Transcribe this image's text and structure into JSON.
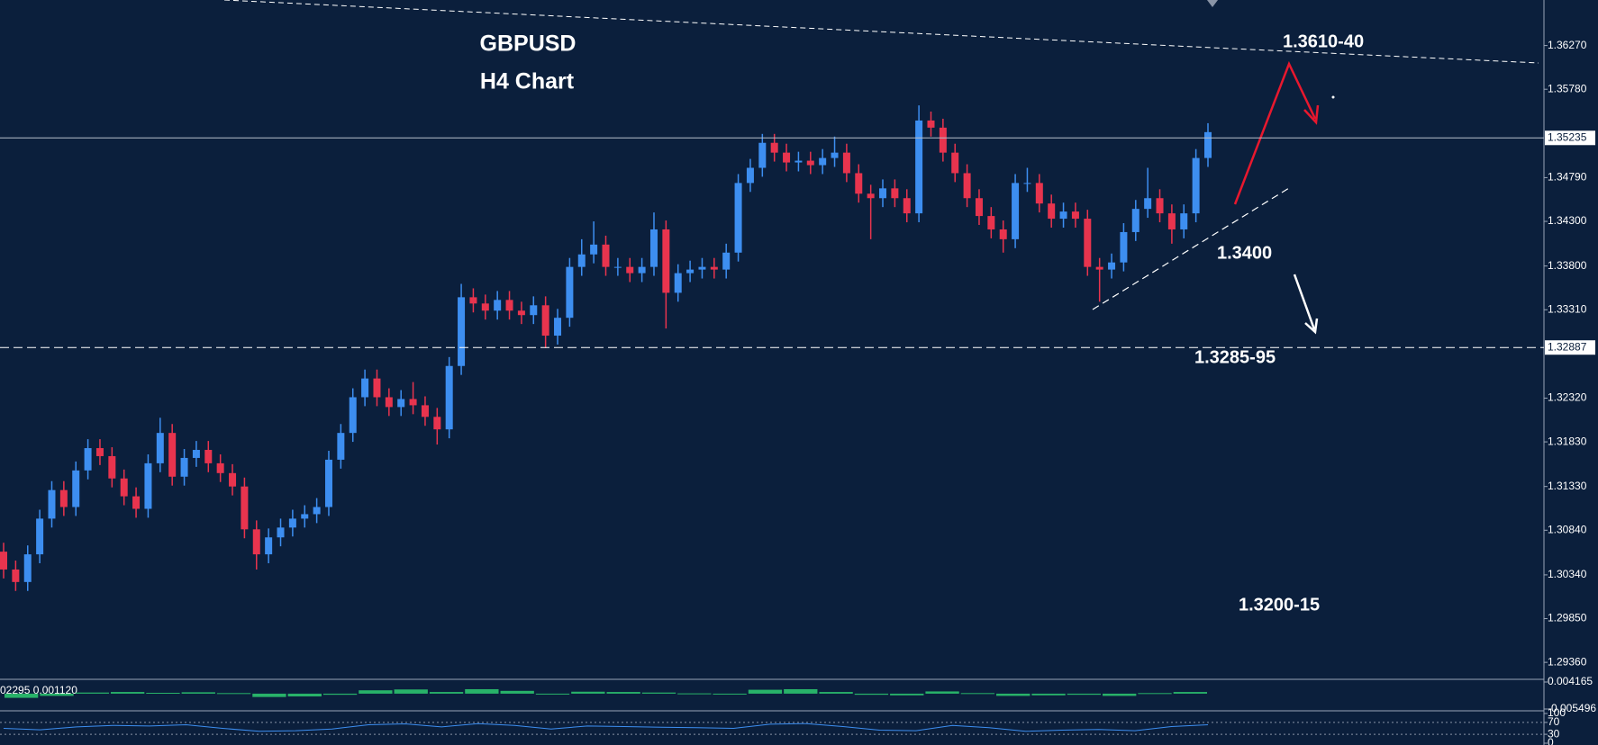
{
  "chart_data": [
    {
      "type": "candlestick",
      "title": "GBPUSD",
      "subtitle": "H4 Chart",
      "ylim": [
        1.2919,
        1.3678
      ],
      "yticks": [
        {
          "value": 1.3627,
          "label": "1.36270"
        },
        {
          "value": 1.3578,
          "label": "1.35780"
        },
        {
          "value": 1.3479,
          "label": "1.34790"
        },
        {
          "value": 1.343,
          "label": "1.34300"
        },
        {
          "value": 1.338,
          "label": "1.33800"
        },
        {
          "value": 1.3331,
          "label": "1.33310"
        },
        {
          "value": 1.3232,
          "label": "1.32320"
        },
        {
          "value": 1.3183,
          "label": "1.31830"
        },
        {
          "value": 1.3133,
          "label": "1.31330"
        },
        {
          "value": 1.3084,
          "label": "1.30840"
        },
        {
          "value": 1.3034,
          "label": "1.30340"
        },
        {
          "value": 1.2985,
          "label": "1.29850"
        },
        {
          "value": 1.2936,
          "label": "1.29360"
        }
      ],
      "price_lines": [
        {
          "value": 1.35235,
          "label": "1.35235",
          "style": "solid"
        },
        {
          "value": 1.32887,
          "label": "1.32887",
          "style": "dashed"
        }
      ],
      "annotations": [
        "1.3610-40",
        "1.3400",
        "1.3285-95",
        "1.3200-15"
      ],
      "up_color": "#3d8ef0",
      "down_color": "#e8344e",
      "candles": [
        [
          1.306,
          1.307,
          1.303,
          1.304
        ],
        [
          1.304,
          1.305,
          1.3016,
          1.3026
        ],
        [
          1.3026,
          1.3067,
          1.3016,
          1.3057
        ],
        [
          1.3057,
          1.3107,
          1.3047,
          1.3097
        ],
        [
          1.3097,
          1.3139,
          1.3087,
          1.3129
        ],
        [
          1.3129,
          1.3139,
          1.31,
          1.311
        ],
        [
          1.311,
          1.3161,
          1.31,
          1.3151
        ],
        [
          1.3151,
          1.3186,
          1.3141,
          1.3176
        ],
        [
          1.3176,
          1.3186,
          1.3157,
          1.3167
        ],
        [
          1.3167,
          1.3177,
          1.3132,
          1.3142
        ],
        [
          1.3142,
          1.3152,
          1.3112,
          1.3122
        ],
        [
          1.3122,
          1.3132,
          1.3098,
          1.3108
        ],
        [
          1.3108,
          1.3169,
          1.3098,
          1.3159
        ],
        [
          1.3159,
          1.321,
          1.3149,
          1.3193
        ],
        [
          1.3193,
          1.3203,
          1.3134,
          1.3144
        ],
        [
          1.3144,
          1.3175,
          1.3134,
          1.3165
        ],
        [
          1.3165,
          1.3184,
          1.3155,
          1.3174
        ],
        [
          1.3174,
          1.3184,
          1.3149,
          1.3159
        ],
        [
          1.3159,
          1.3169,
          1.3138,
          1.3148
        ],
        [
          1.3148,
          1.3158,
          1.3123,
          1.3133
        ],
        [
          1.3133,
          1.3143,
          1.3075,
          1.3085
        ],
        [
          1.3085,
          1.3095,
          1.304,
          1.3057
        ],
        [
          1.3057,
          1.3086,
          1.3047,
          1.3076
        ],
        [
          1.3076,
          1.3097,
          1.3066,
          1.3087
        ],
        [
          1.3087,
          1.3107,
          1.3077,
          1.3097
        ],
        [
          1.3097,
          1.3112,
          1.3087,
          1.3102
        ],
        [
          1.3102,
          1.312,
          1.3092,
          1.311
        ],
        [
          1.311,
          1.3173,
          1.31,
          1.3163
        ],
        [
          1.3163,
          1.3203,
          1.3153,
          1.3193
        ],
        [
          1.3193,
          1.3243,
          1.3183,
          1.3233
        ],
        [
          1.3233,
          1.3264,
          1.3223,
          1.3254
        ],
        [
          1.3254,
          1.3264,
          1.3223,
          1.3233
        ],
        [
          1.3233,
          1.3243,
          1.3212,
          1.3222
        ],
        [
          1.3222,
          1.3241,
          1.3212,
          1.3231
        ],
        [
          1.3231,
          1.325,
          1.3214,
          1.3224
        ],
        [
          1.3224,
          1.3234,
          1.3201,
          1.3211
        ],
        [
          1.3211,
          1.3221,
          1.318,
          1.3197
        ],
        [
          1.3197,
          1.3278,
          1.3187,
          1.3268
        ],
        [
          1.3268,
          1.336,
          1.3258,
          1.3345
        ],
        [
          1.3345,
          1.3355,
          1.3328,
          1.3338
        ],
        [
          1.3338,
          1.3348,
          1.332,
          1.333
        ],
        [
          1.333,
          1.3352,
          1.332,
          1.3342
        ],
        [
          1.3342,
          1.3352,
          1.332,
          1.333
        ],
        [
          1.333,
          1.334,
          1.3315,
          1.3325
        ],
        [
          1.3325,
          1.3346,
          1.3315,
          1.3336
        ],
        [
          1.3336,
          1.3346,
          1.3288,
          1.3302
        ],
        [
          1.3302,
          1.3332,
          1.3292,
          1.3322
        ],
        [
          1.3322,
          1.3389,
          1.3312,
          1.3379
        ],
        [
          1.3379,
          1.341,
          1.3369,
          1.3393
        ],
        [
          1.3393,
          1.343,
          1.3383,
          1.3404
        ],
        [
          1.3404,
          1.3414,
          1.3369,
          1.3379
        ],
        [
          1.3379,
          1.3389,
          1.3369,
          1.3379
        ],
        [
          1.3379,
          1.3389,
          1.3362,
          1.3372
        ],
        [
          1.3372,
          1.3389,
          1.3362,
          1.3379
        ],
        [
          1.3379,
          1.344,
          1.3369,
          1.3421
        ],
        [
          1.3421,
          1.3431,
          1.331,
          1.335
        ],
        [
          1.335,
          1.3382,
          1.334,
          1.3372
        ],
        [
          1.3372,
          1.3386,
          1.3362,
          1.3376
        ],
        [
          1.3376,
          1.3389,
          1.3366,
          1.3379
        ],
        [
          1.3379,
          1.3389,
          1.3366,
          1.3376
        ],
        [
          1.3376,
          1.3405,
          1.3366,
          1.3395
        ],
        [
          1.3395,
          1.3483,
          1.3385,
          1.3473
        ],
        [
          1.3473,
          1.35,
          1.3463,
          1.349
        ],
        [
          1.349,
          1.3528,
          1.348,
          1.3518
        ],
        [
          1.3518,
          1.3528,
          1.3497,
          1.3507
        ],
        [
          1.3507,
          1.3517,
          1.3486,
          1.3496
        ],
        [
          1.3496,
          1.3508,
          1.3486,
          1.3498
        ],
        [
          1.3498,
          1.3508,
          1.3483,
          1.3493
        ],
        [
          1.3493,
          1.3511,
          1.3483,
          1.3501
        ],
        [
          1.3501,
          1.3525,
          1.3491,
          1.3507
        ],
        [
          1.3507,
          1.3517,
          1.3474,
          1.3484
        ],
        [
          1.3484,
          1.3494,
          1.3451,
          1.3461
        ],
        [
          1.3461,
          1.3471,
          1.341,
          1.3456
        ],
        [
          1.3456,
          1.3477,
          1.3446,
          1.3467
        ],
        [
          1.3467,
          1.3477,
          1.3446,
          1.3456
        ],
        [
          1.3456,
          1.3466,
          1.3429,
          1.3439
        ],
        [
          1.3439,
          1.356,
          1.3429,
          1.3543
        ],
        [
          1.3543,
          1.3553,
          1.3525,
          1.3535
        ],
        [
          1.3535,
          1.3545,
          1.3497,
          1.3507
        ],
        [
          1.3507,
          1.3517,
          1.3474,
          1.3484
        ],
        [
          1.3484,
          1.3494,
          1.3446,
          1.3456
        ],
        [
          1.3456,
          1.3466,
          1.3426,
          1.3436
        ],
        [
          1.3436,
          1.3446,
          1.3411,
          1.3421
        ],
        [
          1.3421,
          1.3431,
          1.3395,
          1.341
        ],
        [
          1.341,
          1.3483,
          1.34,
          1.3473
        ],
        [
          1.3473,
          1.349,
          1.3463,
          1.3473
        ],
        [
          1.3473,
          1.3483,
          1.344,
          1.345
        ],
        [
          1.345,
          1.346,
          1.3423,
          1.3433
        ],
        [
          1.3433,
          1.3451,
          1.3423,
          1.3441
        ],
        [
          1.3441,
          1.3451,
          1.3423,
          1.3433
        ],
        [
          1.3433,
          1.3443,
          1.3369,
          1.3379
        ],
        [
          1.3379,
          1.3389,
          1.334,
          1.3376
        ],
        [
          1.3376,
          1.3394,
          1.3366,
          1.3384
        ],
        [
          1.3384,
          1.3428,
          1.3374,
          1.3418
        ],
        [
          1.3418,
          1.3454,
          1.3408,
          1.3444
        ],
        [
          1.3444,
          1.349,
          1.3434,
          1.3456
        ],
        [
          1.3456,
          1.3466,
          1.3429,
          1.3439
        ],
        [
          1.3439,
          1.3449,
          1.3405,
          1.3421
        ],
        [
          1.3421,
          1.3449,
          1.3411,
          1.3439
        ],
        [
          1.3439,
          1.3511,
          1.3429,
          1.3501
        ],
        [
          1.3501,
          1.354,
          1.3491,
          1.353
        ]
      ]
    },
    {
      "type": "bar",
      "label": "02295 0.001120",
      "color": "#2ecc71",
      "ylim": [
        -0.005496,
        0.004165
      ],
      "yticks": [
        0.004165,
        -0.005496
      ],
      "values": [
        -0.0015,
        -0.0008,
        0.0004,
        0.0006,
        0.0003,
        0.0005,
        0.0002,
        -0.0012,
        -0.001,
        -0.0004,
        0.0012,
        0.0015,
        0.0006,
        0.0016,
        0.001,
        -0.0002,
        0.0007,
        0.0006,
        0.0004,
        0.0001,
        -0.0002,
        0.0014,
        0.0016,
        0.0006,
        -0.0004,
        -0.0006,
        0.0008,
        0.0002,
        -0.0008,
        -0.0006,
        -0.0004,
        -0.0008,
        0.0002,
        0.0006
      ]
    },
    {
      "type": "line",
      "color": "#3d8ef0",
      "ylim": [
        0,
        100
      ],
      "yticks": [
        100,
        70,
        30,
        0
      ],
      "values": [
        50,
        45,
        55,
        60,
        58,
        62,
        50,
        40,
        42,
        48,
        62,
        65,
        55,
        66,
        60,
        48,
        58,
        56,
        54,
        52,
        50,
        64,
        66,
        56,
        44,
        42,
        60,
        52,
        40,
        44,
        46,
        42,
        56,
        62
      ]
    }
  ]
}
